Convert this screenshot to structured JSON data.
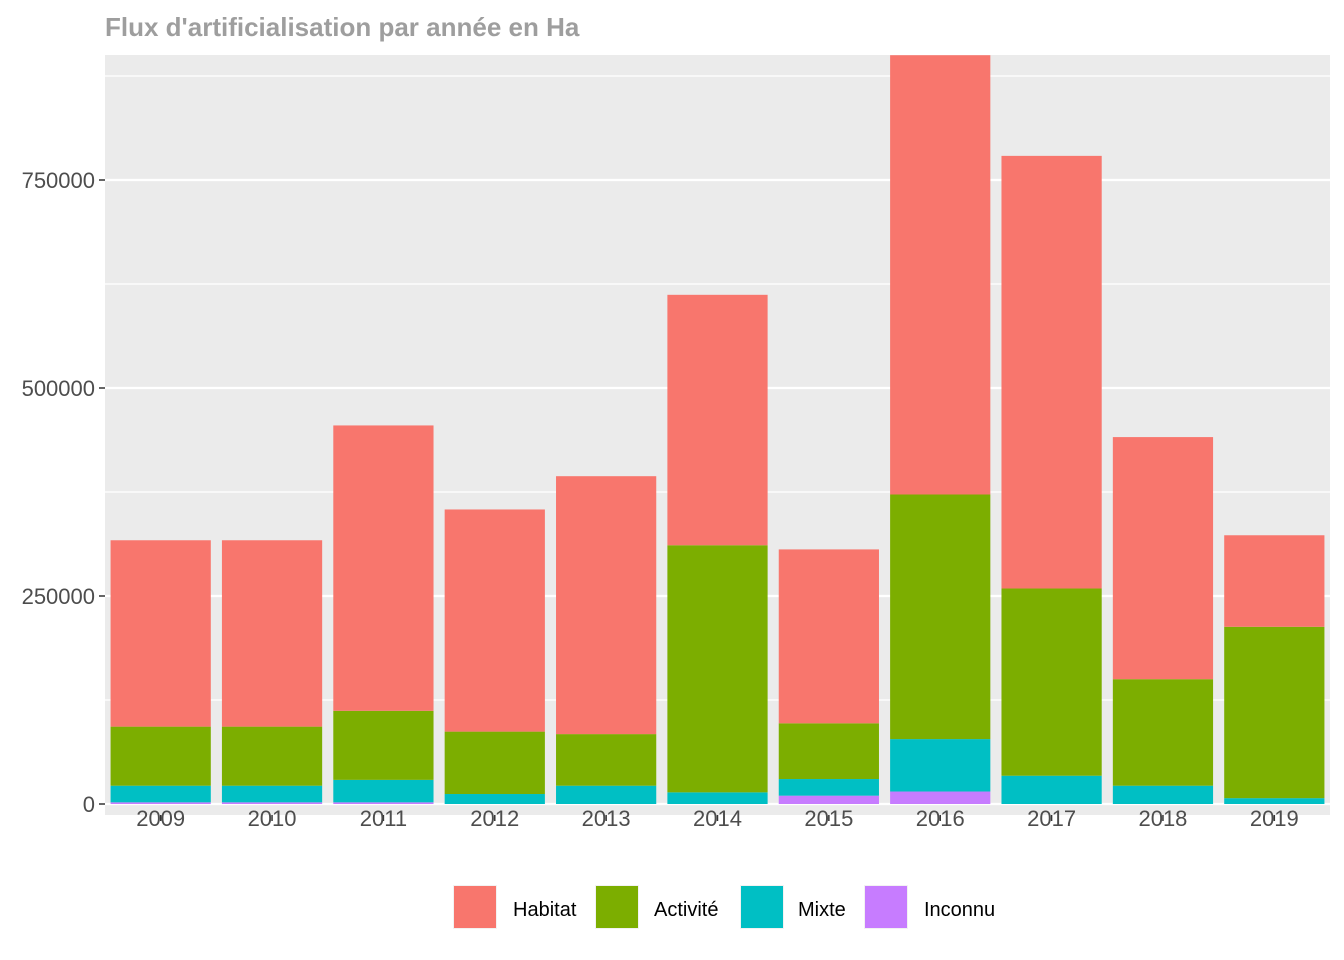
{
  "chart_data": {
    "type": "bar",
    "stacked": true,
    "title": "Flux d'artificialisation par année en Ha",
    "xlabel": "",
    "ylabel": "",
    "categories": [
      "2009",
      "2010",
      "2011",
      "2012",
      "2013",
      "2014",
      "2015",
      "2016",
      "2017",
      "2018",
      "2019"
    ],
    "series": [
      {
        "name": "Inconnu",
        "color": "#C77CFF",
        "values": [
          2000,
          2000,
          2000,
          0,
          0,
          0,
          10000,
          15000,
          0,
          0,
          0
        ]
      },
      {
        "name": "Mixte",
        "color": "#00BFC4",
        "values": [
          20000,
          20000,
          27000,
          12000,
          22000,
          14000,
          20000,
          63000,
          34000,
          22000,
          7000
        ]
      },
      {
        "name": "Activité",
        "color": "#7CAE00",
        "values": [
          71000,
          71000,
          83000,
          75000,
          62000,
          297000,
          67000,
          294000,
          225000,
          128000,
          206000
        ]
      },
      {
        "name": "Habitat",
        "color": "#F8766D",
        "values": [
          224000,
          224000,
          343000,
          267000,
          310000,
          301000,
          209000,
          528000,
          520000,
          291000,
          110000
        ]
      }
    ],
    "yticks": [
      0,
      250000,
      500000,
      750000
    ],
    "ytick_labels": [
      "0",
      "250000",
      "500000",
      "750000"
    ],
    "ylim": [
      0,
      900000
    ],
    "grid": true,
    "legend": {
      "position": "bottom",
      "order": [
        "Habitat",
        "Activité",
        "Mixte",
        "Inconnu"
      ]
    }
  }
}
